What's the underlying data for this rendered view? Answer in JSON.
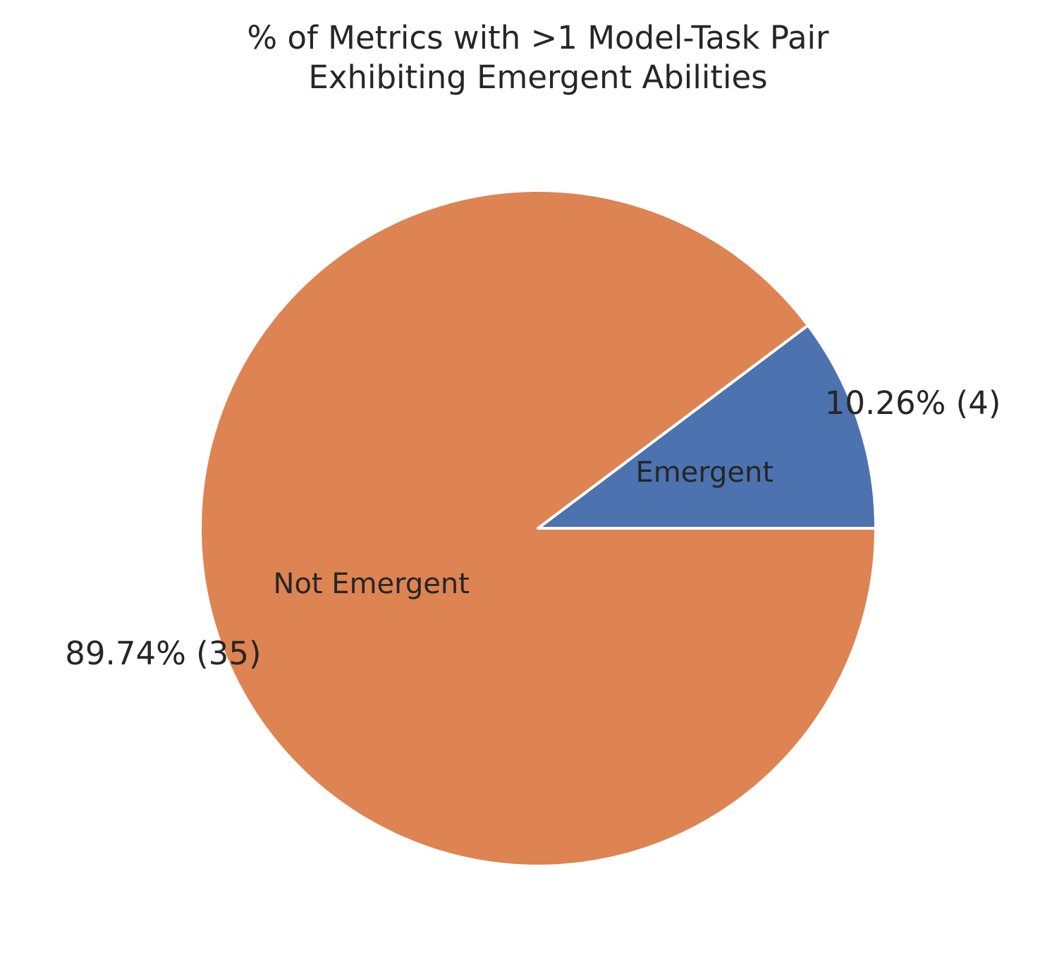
{
  "chart_data": {
    "type": "pie",
    "title": [
      "% of Metrics with >1 Model-Task Pair",
      "Exhibiting Emergent Abilities"
    ],
    "slices": [
      {
        "label": "Emergent",
        "value": 4,
        "percent_label": "10.26%  (4)",
        "color": "#4c72b0"
      },
      {
        "label": "Not Emergent",
        "value": 35,
        "percent_label": "89.74%  (35)",
        "color": "#dd8452"
      }
    ],
    "start_angle_deg": 0,
    "direction": "counterclockwise",
    "edge_color": "#ffffff"
  }
}
